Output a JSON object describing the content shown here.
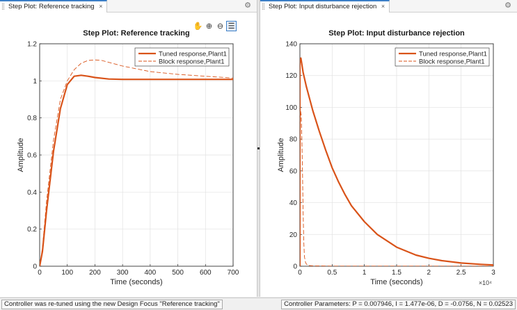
{
  "tabs": {
    "left_label": "Step Plot: Reference tracking",
    "right_label": "Step Plot: Input disturbance rejection",
    "close_glyph": "×",
    "settings_icon": "gear-icon"
  },
  "toolbar": {
    "icons": [
      "pan-hand-icon",
      "zoom-in-icon",
      "zoom-out-icon",
      "legend-toggle-icon"
    ]
  },
  "status": {
    "left_message": "Controller was re-tuned using the new Design Focus \"Reference tracking\"",
    "right_message": "Controller Parameters: P = 0.007946, I = 1.477e-06, D = -0.0756, N = 0.02523"
  },
  "colors": {
    "tuned": "#d95319",
    "block": "#d95319",
    "accent": "#3c7fc7"
  },
  "chart_data": [
    {
      "type": "line",
      "title": "Step Plot: Reference tracking",
      "xlabel": "Time (seconds)",
      "ylabel": "Amplitude",
      "xlim": [
        0,
        700
      ],
      "ylim": [
        0,
        1.2
      ],
      "xticks": [
        0,
        100,
        200,
        300,
        400,
        500,
        600,
        700
      ],
      "yticks": [
        0,
        0.2,
        0.4,
        0.6,
        0.8,
        1,
        1.2
      ],
      "xtick_labels": [
        "0",
        "100",
        "200",
        "300",
        "400",
        "500",
        "600",
        "700"
      ],
      "ytick_labels": [
        "0",
        "0.2",
        "0.4",
        "0.6",
        "0.8",
        "1",
        "1.2"
      ],
      "exponent_label": "",
      "grid": true,
      "legend_position": "top-right",
      "series": [
        {
          "name": "Tuned response,Plant1",
          "style": "solid",
          "x": [
            0,
            10,
            25,
            50,
            75,
            100,
            125,
            150,
            175,
            200,
            250,
            300,
            400,
            500,
            600,
            700
          ],
          "y": [
            0,
            0.08,
            0.3,
            0.62,
            0.85,
            0.98,
            1.025,
            1.03,
            1.025,
            1.018,
            1.01,
            1.008,
            1.008,
            1.008,
            1.008,
            1.008
          ]
        },
        {
          "name": "Block response,Plant1",
          "style": "dashed",
          "x": [
            0,
            10,
            25,
            50,
            75,
            100,
            125,
            150,
            175,
            200,
            225,
            250,
            300,
            350,
            400,
            500,
            600,
            700
          ],
          "y": [
            0,
            0.1,
            0.35,
            0.68,
            0.9,
            1.0,
            1.06,
            1.095,
            1.11,
            1.113,
            1.11,
            1.1,
            1.08,
            1.065,
            1.05,
            1.035,
            1.025,
            1.015
          ]
        }
      ]
    },
    {
      "type": "line",
      "title": "Step Plot: Input disturbance rejection",
      "xlabel": "Time (seconds)",
      "ylabel": "Amplitude",
      "xlim": [
        0,
        30000
      ],
      "ylim": [
        0,
        140
      ],
      "xticks": [
        0,
        5000,
        10000,
        15000,
        20000,
        25000,
        30000
      ],
      "yticks": [
        0,
        20,
        40,
        60,
        80,
        100,
        120,
        140
      ],
      "xtick_labels": [
        "0",
        "0.5",
        "1",
        "1.5",
        "2",
        "2.5",
        "3"
      ],
      "ytick_labels": [
        "0",
        "20",
        "40",
        "60",
        "80",
        "100",
        "120",
        "140"
      ],
      "exponent_label": "×10^4",
      "grid": true,
      "legend_position": "top-right",
      "series": [
        {
          "name": "Tuned response,Plant1",
          "style": "solid",
          "x": [
            0,
            0,
            150,
            500,
            1000,
            2000,
            3000,
            4000,
            5000,
            6000,
            7000,
            8000,
            10000,
            12000,
            15000,
            18000,
            20000,
            22000,
            25000,
            28000,
            30000
          ],
          "y": [
            0,
            128,
            131,
            122,
            113,
            98,
            85,
            73,
            62,
            53,
            45,
            38,
            28,
            20,
            12,
            7,
            5,
            3.5,
            2,
            1.2,
            0.8
          ]
        },
        {
          "name": "Block response,Plant1",
          "style": "dashed",
          "x": [
            0,
            0,
            100,
            200,
            300,
            400,
            500,
            600,
            700,
            900,
            1200,
            2000,
            5000,
            10000,
            20000,
            30000
          ],
          "y": [
            0,
            60,
            98,
            95,
            80,
            60,
            35,
            15,
            6,
            2,
            0.5,
            0.2,
            0.1,
            0.1,
            0.1,
            0.1
          ]
        }
      ]
    }
  ]
}
